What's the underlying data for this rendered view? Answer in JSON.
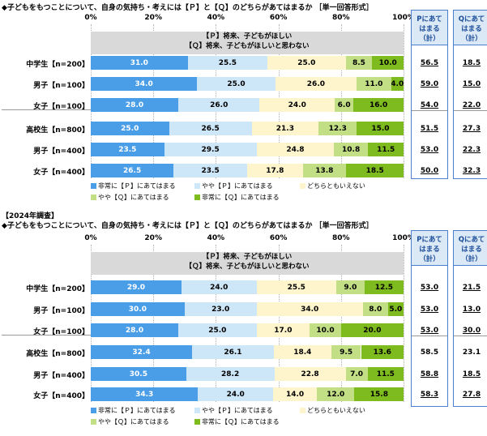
{
  "colors": {
    "very_p": "#4a9ee8",
    "some_p": "#cde6f8",
    "neither": "#fff5cc",
    "some_q": "#c2df86",
    "very_q": "#7ebb1f",
    "accent": "#4a7fd0"
  },
  "axis_ticks": [
    "0%",
    "20%",
    "40%",
    "60%",
    "80%",
    "100%"
  ],
  "legend": [
    "非常に【Ｐ】にあてはまる",
    "やや【Ｐ】にあてはまる",
    "どちらともいえない",
    "やや【Ｑ】にあてはまる",
    "非常に【Ｑ】にあてはまる"
  ],
  "summary_headers": {
    "p": "Pにあて\nはまる\n（計）",
    "q": "Qにあて\nはまる\n（計）"
  },
  "header_p": "【Ｐ】将来、子どもがほしい",
  "header_q": "【Ｑ】将来、子どもがほしいと思わない",
  "chart_data": [
    {
      "type": "bar",
      "stacked": true,
      "title": "◆子どもをもつことについて、自身の気持ち・考えには【Ｐ】と【Ｑ】のどちらがあてはまるか ［単一回答形式］",
      "year_label": "",
      "series_names": [
        "非常に【Ｐ】にあてはまる",
        "やや【Ｐ】にあてはまる",
        "どちらともいえない",
        "やや【Ｑ】にあてはまる",
        "非常に【Ｑ】にあてはまる"
      ],
      "xlim": [
        0,
        100
      ],
      "rows": [
        {
          "label": "中学生【n=200】",
          "values": [
            31.0,
            25.5,
            25.0,
            8.5,
            10.0
          ],
          "labels": [
            "31.0",
            "25.5",
            "25.0",
            "8.5",
            "10.0"
          ],
          "p_total": "56.5",
          "q_total": "18.5",
          "p_u": true,
          "q_u": true
        },
        {
          "label": "男子【n=100】",
          "values": [
            34.0,
            25.0,
            26.0,
            11.0,
            4.0
          ],
          "labels": [
            "34.0",
            "25.0",
            "26.0",
            "11.0",
            "4.0"
          ],
          "p_total": "59.0",
          "q_total": "15.0",
          "p_u": true,
          "q_u": true
        },
        {
          "label": "女子【n=100】",
          "values": [
            28.0,
            26.0,
            24.0,
            6.0,
            16.0
          ],
          "labels": [
            "28.0",
            "26.0",
            "24.0",
            "6.0",
            "16.0"
          ],
          "p_total": "54.0",
          "q_total": "22.0",
          "p_u": true,
          "q_u": true
        },
        {
          "label": "高校生【n=800】",
          "values": [
            25.0,
            26.5,
            21.3,
            12.3,
            15.0
          ],
          "labels": [
            "25.0",
            "26.5",
            "21.3",
            "12.3",
            "15.0"
          ],
          "p_total": "51.5",
          "q_total": "27.3",
          "p_u": true,
          "q_u": true
        },
        {
          "label": "男子【n=400】",
          "values": [
            23.5,
            29.5,
            24.8,
            10.8,
            11.5
          ],
          "labels": [
            "23.5",
            "29.5",
            "24.8",
            "10.8",
            "11.5"
          ],
          "p_total": "53.0",
          "q_total": "22.3",
          "p_u": true,
          "q_u": true
        },
        {
          "label": "女子【n=400】",
          "values": [
            26.5,
            23.5,
            17.8,
            13.8,
            18.5
          ],
          "labels": [
            "26.5",
            "23.5",
            "17.8",
            "13.8",
            "18.5"
          ],
          "p_total": "50.0",
          "q_total": "32.3",
          "p_u": true,
          "q_u": true
        }
      ]
    },
    {
      "type": "bar",
      "stacked": true,
      "title": "◆子どもをもつことについて、自身の気持ち・考えには【Ｐ】と【Ｑ】のどちらがあてはまるか ［単一回答形式］",
      "year_label": "【2024年調査】",
      "series_names": [
        "非常に【Ｐ】にあてはまる",
        "やや【Ｐ】にあてはまる",
        "どちらともいえない",
        "やや【Ｑ】にあてはまる",
        "非常に【Ｑ】にあてはまる"
      ],
      "xlim": [
        0,
        100
      ],
      "rows": [
        {
          "label": "中学生【n=200】",
          "values": [
            29.0,
            24.0,
            25.5,
            9.0,
            12.5
          ],
          "labels": [
            "29.0",
            "24.0",
            "25.5",
            "9.0",
            "12.5"
          ],
          "p_total": "53.0",
          "q_total": "21.5",
          "p_u": true,
          "q_u": true
        },
        {
          "label": "男子【n=100】",
          "values": [
            30.0,
            23.0,
            34.0,
            8.0,
            5.0
          ],
          "labels": [
            "30.0",
            "23.0",
            "34.0",
            "8.0",
            "5.0"
          ],
          "p_total": "53.0",
          "q_total": "13.0",
          "p_u": true,
          "q_u": true
        },
        {
          "label": "女子【n=100】",
          "values": [
            28.0,
            25.0,
            17.0,
            10.0,
            20.0
          ],
          "labels": [
            "28.0",
            "25.0",
            "17.0",
            "10.0",
            "20.0"
          ],
          "p_total": "53.0",
          "q_total": "30.0",
          "p_u": true,
          "q_u": true
        },
        {
          "label": "高校生【n=800】",
          "values": [
            32.4,
            26.1,
            18.4,
            9.5,
            13.6
          ],
          "labels": [
            "32.4",
            "26.1",
            "18.4",
            "9.5",
            "13.6"
          ],
          "p_total": "58.5",
          "q_total": "23.1",
          "p_u": false,
          "q_u": false
        },
        {
          "label": "男子【n=400】",
          "values": [
            30.5,
            28.2,
            22.8,
            7.0,
            11.5
          ],
          "labels": [
            "30.5",
            "28.2",
            "22.8",
            "7.0",
            "11.5"
          ],
          "p_total": "58.8",
          "q_total": "18.5",
          "p_u": true,
          "q_u": true
        },
        {
          "label": "女子【n=400】",
          "values": [
            34.3,
            24.0,
            14.0,
            12.0,
            15.8
          ],
          "labels": [
            "34.3",
            "24.0",
            "14.0",
            "12.0",
            "15.8"
          ],
          "p_total": "58.3",
          "q_total": "27.8",
          "p_u": true,
          "q_u": true
        }
      ]
    }
  ]
}
